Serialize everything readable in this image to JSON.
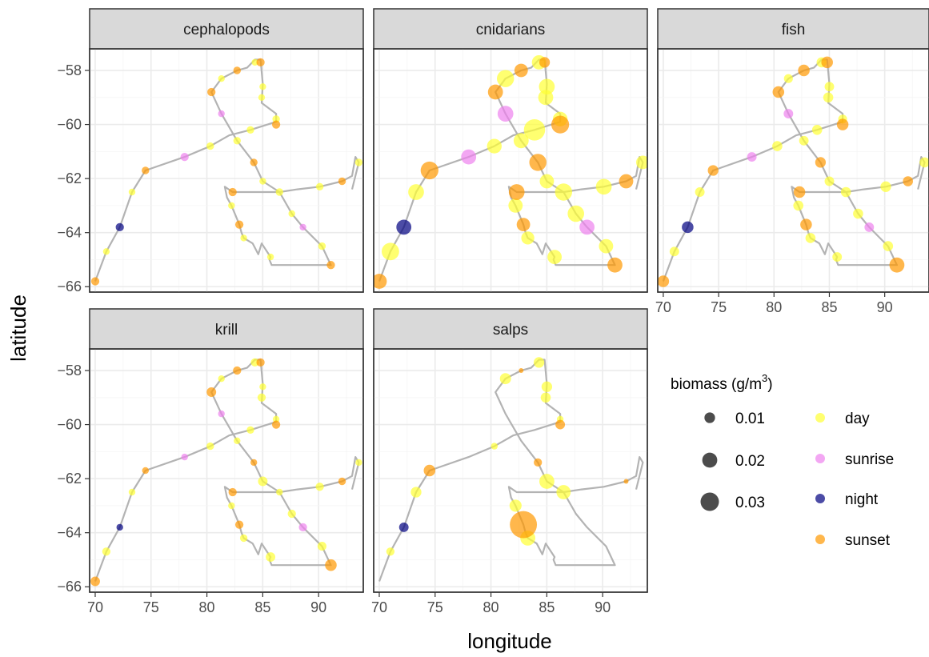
{
  "chart_data": {
    "type": "scatter",
    "facets": [
      "cephalopods",
      "cnidarians",
      "fish",
      "krill",
      "salps"
    ],
    "xlabel": "longitude",
    "ylabel": "latitude",
    "xlim": [
      69.5,
      94.0
    ],
    "ylim": [
      -66.2,
      -57.2
    ],
    "x_ticks": [
      70,
      75,
      80,
      85,
      90
    ],
    "y_ticks": [
      -58,
      -60,
      -62,
      -64,
      -66
    ],
    "grid": true,
    "legend": {
      "size_title": "biomass (g/m",
      "size_title_sup": "3",
      "size_title_close": ")",
      "size_entries": [
        {
          "label": "0.01",
          "value": 0.01
        },
        {
          "label": "0.02",
          "value": 0.02
        },
        {
          "label": "0.03",
          "value": 0.03
        }
      ],
      "color_entries": [
        {
          "label": "day",
          "color": "#ffff33"
        },
        {
          "label": "sunrise",
          "color": "#ee82ee"
        },
        {
          "label": "night",
          "color": "#000080"
        },
        {
          "label": "sunset",
          "color": "#ff9900"
        }
      ],
      "placement": "right"
    },
    "track_path": [
      [
        70.0,
        -65.8
      ],
      [
        71.0,
        -64.7
      ],
      [
        72.2,
        -63.8
      ],
      [
        73.3,
        -62.5
      ],
      [
        74.5,
        -61.7
      ],
      [
        78.0,
        -61.2
      ],
      [
        80.3,
        -60.8
      ],
      [
        82.0,
        -60.4
      ],
      [
        83.9,
        -60.2
      ],
      [
        86.2,
        -59.9
      ],
      [
        86.2,
        -59.6
      ],
      [
        84.9,
        -59.2
      ],
      [
        85.0,
        -58.5
      ],
      [
        84.8,
        -57.6
      ],
      [
        84.3,
        -57.6
      ],
      [
        83.6,
        -57.9
      ],
      [
        82.7,
        -58.0
      ],
      [
        81.3,
        -58.3
      ],
      [
        80.4,
        -58.8
      ],
      [
        81.3,
        -59.6
      ],
      [
        82.7,
        -60.6
      ],
      [
        84.2,
        -61.4
      ],
      [
        85.0,
        -62.1
      ],
      [
        86.5,
        -62.5
      ],
      [
        87.6,
        -63.3
      ],
      [
        88.6,
        -63.8
      ],
      [
        90.3,
        -64.5
      ],
      [
        91.1,
        -65.2
      ],
      [
        85.8,
        -65.2
      ],
      [
        85.6,
        -65.0
      ],
      [
        85.7,
        -64.9
      ],
      [
        84.9,
        -64.4
      ],
      [
        84.6,
        -64.8
      ],
      [
        84.1,
        -64.4
      ],
      [
        83.3,
        -64.2
      ],
      [
        83.1,
        -64.0
      ],
      [
        82.9,
        -63.7
      ],
      [
        82.2,
        -63.0
      ],
      [
        81.8,
        -62.7
      ],
      [
        81.6,
        -62.3
      ],
      [
        82.3,
        -62.5
      ],
      [
        83.6,
        -62.5
      ],
      [
        86.5,
        -62.5
      ],
      [
        88.1,
        -62.4
      ],
      [
        90.1,
        -62.3
      ],
      [
        92.1,
        -62.1
      ],
      [
        93.0,
        -61.9
      ],
      [
        93.3,
        -61.2
      ],
      [
        93.6,
        -61.4
      ],
      [
        93.0,
        -62.4
      ]
    ],
    "stations": [
      [
        70.0,
        -65.8
      ],
      [
        71.0,
        -64.7
      ],
      [
        72.2,
        -63.8
      ],
      [
        73.3,
        -62.5
      ],
      [
        74.5,
        -61.7
      ],
      [
        78.0,
        -61.2
      ],
      [
        80.3,
        -60.8
      ],
      [
        81.3,
        -59.6
      ],
      [
        80.4,
        -58.8
      ],
      [
        81.3,
        -58.3
      ],
      [
        82.7,
        -58.0
      ],
      [
        84.3,
        -57.7
      ],
      [
        84.8,
        -57.7
      ],
      [
        85.0,
        -58.6
      ],
      [
        84.9,
        -59.0
      ],
      [
        86.2,
        -59.8
      ],
      [
        86.2,
        -60.0
      ],
      [
        83.9,
        -60.2
      ],
      [
        82.7,
        -60.6
      ],
      [
        84.2,
        -61.4
      ],
      [
        85.0,
        -62.1
      ],
      [
        86.5,
        -62.5
      ],
      [
        87.6,
        -63.3
      ],
      [
        88.6,
        -63.8
      ],
      [
        90.3,
        -64.5
      ],
      [
        91.1,
        -65.2
      ],
      [
        85.7,
        -64.9
      ],
      [
        83.3,
        -64.2
      ],
      [
        82.9,
        -63.7
      ],
      [
        82.2,
        -63.0
      ],
      [
        82.3,
        -62.5
      ],
      [
        90.1,
        -62.3
      ],
      [
        92.1,
        -62.1
      ],
      [
        93.6,
        -61.4
      ]
    ],
    "phases": [
      "sunset",
      "day",
      "night",
      "day",
      "sunset",
      "sunrise",
      "day",
      "sunrise",
      "sunset",
      "day",
      "sunset",
      "day",
      "sunset",
      "day",
      "day",
      "day",
      "sunset",
      "day",
      "day",
      "sunset",
      "day",
      "day",
      "day",
      "sunrise",
      "day",
      "sunset",
      "day",
      "day",
      "sunset",
      "day",
      "sunset",
      "day",
      "sunset",
      "day"
    ],
    "series": [
      {
        "name": "cephalopods",
        "biomass": [
          0.006,
          0.004,
          0.006,
          0.004,
          0.005,
          0.006,
          0.005,
          0.004,
          0.006,
          0.004,
          0.005,
          0.004,
          0.006,
          0.004,
          0.004,
          0.005,
          0.006,
          0.005,
          0.005,
          0.005,
          0.004,
          0.005,
          0.004,
          0.004,
          0.005,
          0.006,
          0.004,
          0.004,
          0.006,
          0.004,
          0.006,
          0.005,
          0.005,
          0.005
        ]
      },
      {
        "name": "cnidarians",
        "biomass": [
          0.02,
          0.027,
          0.02,
          0.022,
          0.028,
          0.02,
          0.019,
          0.022,
          0.02,
          0.026,
          0.016,
          0.018,
          0.01,
          0.022,
          0.02,
          0.019,
          0.028,
          0.04,
          0.02,
          0.026,
          0.018,
          0.026,
          0.024,
          0.02,
          0.018,
          0.02,
          0.018,
          0.015,
          0.016,
          0.018,
          0.022,
          0.022,
          0.018,
          0.016
        ]
      },
      {
        "name": "fish",
        "biomass": [
          0.012,
          0.008,
          0.012,
          0.008,
          0.01,
          0.008,
          0.009,
          0.008,
          0.012,
          0.007,
          0.012,
          0.009,
          0.012,
          0.008,
          0.009,
          0.007,
          0.012,
          0.009,
          0.008,
          0.01,
          0.008,
          0.009,
          0.009,
          0.008,
          0.009,
          0.02,
          0.008,
          0.009,
          0.012,
          0.009,
          0.012,
          0.01,
          0.009,
          0.009
        ]
      },
      {
        "name": "krill",
        "biomass": [
          0.008,
          0.006,
          0.004,
          0.004,
          0.004,
          0.004,
          0.005,
          0.004,
          0.008,
          0.004,
          0.006,
          0.006,
          0.006,
          0.004,
          0.006,
          0.004,
          0.006,
          0.005,
          0.004,
          0.004,
          0.008,
          0.004,
          0.006,
          0.006,
          0.007,
          0.012,
          0.008,
          0.005,
          0.006,
          0.004,
          0.006,
          0.006,
          0.005,
          0.004
        ]
      },
      {
        "name": "salps",
        "biomass": [
          0,
          0.006,
          0.008,
          0.01,
          0.012,
          0,
          0.004,
          0,
          0,
          0.011,
          0.002,
          0.01,
          0,
          0.01,
          0.009,
          0.004,
          0.008,
          0,
          0,
          0.006,
          0.02,
          0.018,
          0,
          0,
          0,
          0,
          0,
          0.02,
          0.065,
          0.013,
          0,
          0,
          0.002,
          0
        ]
      }
    ]
  }
}
